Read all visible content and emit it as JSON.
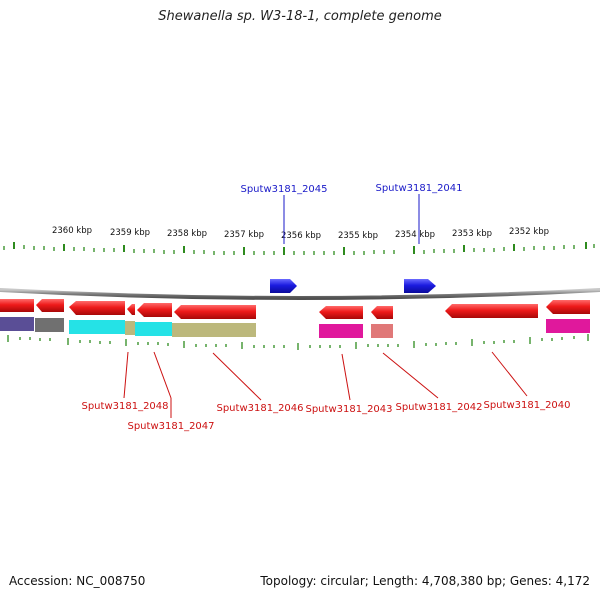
{
  "title": "Shewanella sp. W3-18-1, complete genome",
  "footer": {
    "accession": "Accession: NC_008750",
    "stats": "Topology: circular; Length: 4,708,380 bp; Genes: 4,172"
  },
  "colors": {
    "background": "#ffffff",
    "backbone": "#8a8a8a",
    "ticks": "#2e8b1e",
    "forward_gene": "#1b1bd6",
    "reverse_gene": "#e01414",
    "forward_label": "#1a1ac8",
    "reverse_label": "#cc1111",
    "cog_purple": "#5a4e96",
    "cog_gray": "#707070",
    "cog_cyan": "#25e2e6",
    "cog_khaki": "#bcb87c",
    "cog_magenta": "#e0189c",
    "cog_salmon": "#e07878"
  },
  "scale_ticks": [
    "2360 kbp",
    "2359 kbp",
    "2358 kbp",
    "2357 kbp",
    "2356 kbp",
    "2355 kbp",
    "2354 kbp",
    "2353 kbp",
    "2352 kbp"
  ],
  "labels": {
    "forward": [
      "Sputw3181_2045",
      "Sputw3181_2041"
    ],
    "reverse": [
      "Sputw3181_2048",
      "Sputw3181_2047",
      "Sputw3181_2046",
      "Sputw3181_2043",
      "Sputw3181_2042",
      "Sputw3181_2040"
    ]
  }
}
